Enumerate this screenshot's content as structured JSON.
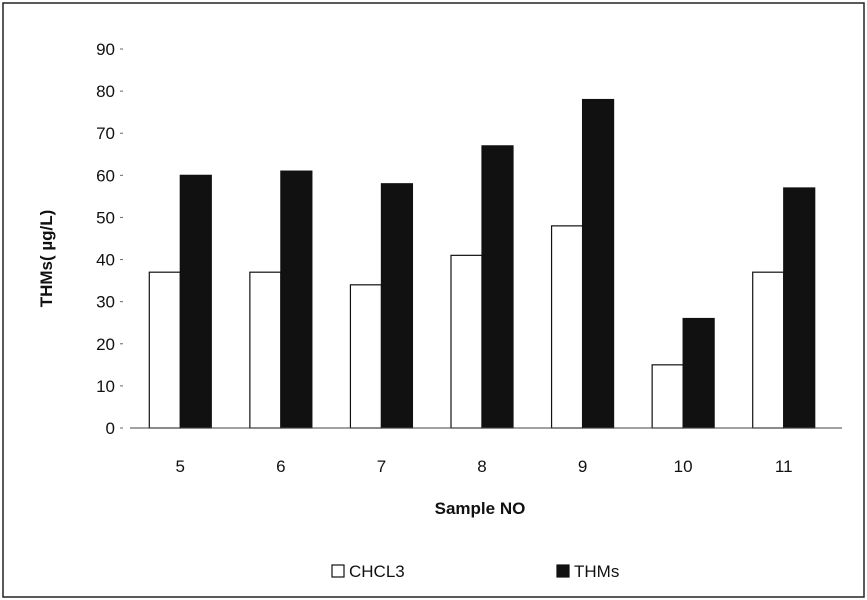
{
  "chart_data": {
    "type": "bar",
    "title": "",
    "xlabel": "Sample NO",
    "ylabel": "THMs( µg/L)",
    "categories": [
      "5",
      "6",
      "7",
      "8",
      "9",
      "10",
      "11"
    ],
    "series": [
      {
        "name": "CHCL3",
        "values": [
          37,
          37,
          34,
          41,
          48,
          15,
          37
        ],
        "color": "#ffffff"
      },
      {
        "name": "THMs",
        "values": [
          60,
          61,
          58,
          67,
          78,
          26,
          57
        ],
        "color": "#111111"
      }
    ],
    "ylim": [
      0,
      90
    ],
    "yticks": [
      0,
      10,
      20,
      30,
      40,
      50,
      60,
      70,
      80,
      90
    ],
    "grid": false,
    "legend_position": "bottom-center"
  }
}
